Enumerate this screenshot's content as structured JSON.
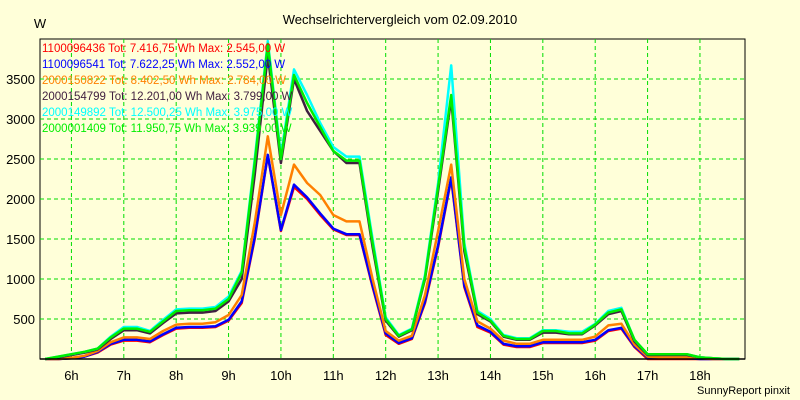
{
  "chart_data": {
    "type": "line",
    "title": "Wechselrichtervergleich vom 02.09.2010",
    "ylabel": "W",
    "xlabel": "",
    "footer": "SunnyReport pinxit",
    "ylim": [
      0,
      4000
    ],
    "xlim": [
      5.4,
      18.86
    ],
    "grid": true,
    "legend_position": "top-left",
    "yticks": [
      500,
      1000,
      1500,
      2000,
      2500,
      3000,
      3500
    ],
    "ytick_labels": [
      "500",
      "1000",
      "1500",
      "2000",
      "2500",
      "3000",
      "3500"
    ],
    "xticks": [
      6,
      7,
      8,
      9,
      10,
      11,
      12,
      13,
      14,
      15,
      16,
      17,
      18
    ],
    "xtick_labels": [
      "6h",
      "7h",
      "8h",
      "9h",
      "10h",
      "11h",
      "12h",
      "13h",
      "14h",
      "15h",
      "16h",
      "17h",
      "18h"
    ],
    "x": [
      5.5,
      5.75,
      6,
      6.25,
      6.5,
      6.75,
      7,
      7.25,
      7.5,
      7.75,
      8,
      8.25,
      8.5,
      8.75,
      9,
      9.25,
      9.5,
      9.75,
      10,
      10.25,
      10.5,
      10.75,
      11,
      11.25,
      11.5,
      11.75,
      12,
      12.25,
      12.5,
      12.75,
      13,
      13.25,
      13.5,
      13.75,
      14,
      14.25,
      14.5,
      14.75,
      15,
      15.25,
      15.5,
      15.75,
      16,
      16.25,
      16.5,
      16.75,
      17,
      17.25,
      17.5,
      17.75,
      18,
      18.25,
      18.5,
      18.75
    ],
    "series": [
      {
        "name": "1100096436",
        "legend": "1100096436 Tot: 7.416,75 Wh Max: 2.545,00 W",
        "color": "#FF0000",
        "values": [
          0,
          0,
          10,
          30,
          80,
          180,
          230,
          230,
          210,
          300,
          380,
          390,
          390,
          400,
          480,
          700,
          1500,
          2545,
          1600,
          2150,
          2000,
          1800,
          1620,
          1550,
          1550,
          900,
          300,
          190,
          250,
          700,
          1400,
          2250,
          900,
          400,
          330,
          180,
          150,
          150,
          200,
          200,
          200,
          200,
          230,
          350,
          380,
          150,
          0,
          0,
          0,
          0,
          0,
          0,
          0,
          0
        ]
      },
      {
        "name": "1100096541",
        "legend": "1100096541 Tot: 7.622,25 Wh Max: 2.552,00 W",
        "color": "#0000FF",
        "values": [
          0,
          0,
          10,
          30,
          90,
          190,
          240,
          240,
          220,
          310,
          390,
          400,
          400,
          410,
          490,
          720,
          1520,
          2552,
          1610,
          2180,
          2020,
          1820,
          1630,
          1560,
          1560,
          920,
          320,
          200,
          260,
          720,
          1420,
          2270,
          920,
          420,
          340,
          190,
          160,
          160,
          210,
          210,
          210,
          210,
          240,
          360,
          390,
          160,
          20,
          10,
          10,
          10,
          0,
          0,
          0,
          0
        ]
      },
      {
        "name": "2000150822",
        "legend": "2000150822 Tot: 8.402,50 Wh Max: 2.784,00 W",
        "color": "#FF8000",
        "values": [
          0,
          0,
          15,
          40,
          100,
          210,
          270,
          270,
          250,
          350,
          430,
          440,
          440,
          460,
          550,
          800,
          1700,
          2784,
          1800,
          2430,
          2200,
          2050,
          1800,
          1720,
          1720,
          1000,
          350,
          230,
          290,
          800,
          1600,
          2430,
          1000,
          470,
          380,
          230,
          190,
          190,
          240,
          240,
          240,
          240,
          280,
          420,
          440,
          180,
          30,
          20,
          20,
          20,
          10,
          0,
          0,
          0
        ]
      },
      {
        "name": "2000154799",
        "legend": "2000154799 Tot: 12.201,00 Wh Max: 3.799,00 W",
        "color": "#402040",
        "values": [
          0,
          20,
          50,
          80,
          120,
          250,
          360,
          360,
          320,
          450,
          570,
          580,
          580,
          600,
          720,
          1000,
          2300,
          3799,
          2450,
          3500,
          3100,
          2850,
          2600,
          2450,
          2450,
          1400,
          480,
          280,
          360,
          1000,
          2100,
          3250,
          1350,
          560,
          470,
          280,
          240,
          240,
          330,
          330,
          310,
          310,
          420,
          560,
          600,
          220,
          50,
          50,
          50,
          50,
          20,
          10,
          0,
          0
        ]
      },
      {
        "name": "2000149892",
        "legend": "2000149892 Tot: 12.500,25 Wh Max: 3.975,00 W",
        "color": "#00FFFF",
        "values": [
          0,
          30,
          60,
          90,
          130,
          280,
          400,
          400,
          350,
          490,
          620,
          630,
          630,
          650,
          780,
          1100,
          2500,
          3975,
          2550,
          3620,
          3300,
          2950,
          2650,
          2530,
          2530,
          1500,
          520,
          300,
          380,
          1050,
          2200,
          3670,
          1450,
          600,
          500,
          300,
          260,
          260,
          360,
          360,
          340,
          340,
          440,
          600,
          640,
          240,
          60,
          60,
          60,
          60,
          20,
          10,
          0,
          0
        ]
      },
      {
        "name": "2000001409",
        "legend": "2000001409 Tot: 11.950,75 Wh Max: 3.939,00 W",
        "color": "#00EE00",
        "values": [
          0,
          30,
          60,
          90,
          130,
          270,
          380,
          380,
          340,
          470,
          600,
          610,
          610,
          630,
          750,
          1080,
          2450,
          3939,
          2500,
          3550,
          3200,
          2900,
          2600,
          2480,
          2480,
          1450,
          500,
          290,
          370,
          1020,
          2150,
          3300,
          1400,
          580,
          480,
          290,
          250,
          250,
          350,
          350,
          320,
          320,
          430,
          580,
          620,
          240,
          60,
          60,
          60,
          60,
          20,
          10,
          0,
          0
        ]
      }
    ]
  }
}
